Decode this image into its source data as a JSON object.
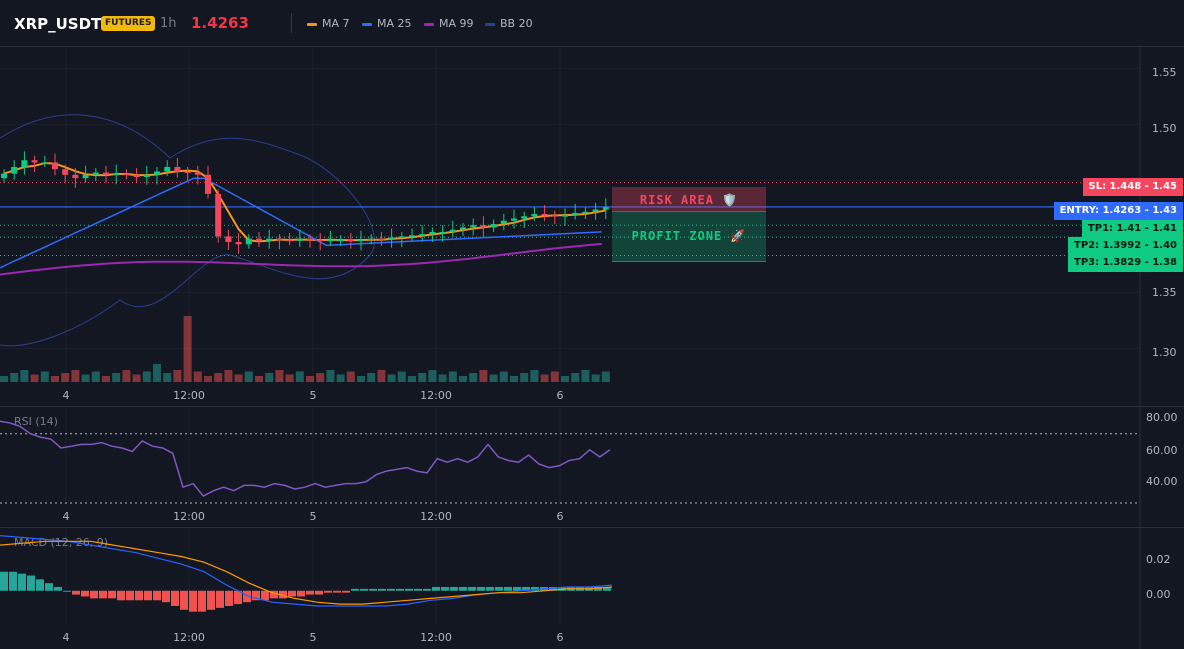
{
  "header": {
    "symbol": "XRP_USDT",
    "badge": "FUTURES",
    "timeframe": "1h",
    "price": "1.4263",
    "legend": [
      {
        "label": "MA 7",
        "color": "#f7931a"
      },
      {
        "label": "MA 25",
        "color": "#2f6bff"
      },
      {
        "label": "MA 99",
        "color": "#9c27b0"
      },
      {
        "label": "BB 20",
        "color": "#2a3f8f"
      }
    ]
  },
  "colors": {
    "up": "#26a69a",
    "down": "#ef5350",
    "bull_candle": "#0ecb81",
    "bear_candle": "#f6465d"
  },
  "price_axis": {
    "ticks": [
      "1.55",
      "1.50",
      "1.45",
      "1.40",
      "1.35",
      "1.30"
    ],
    "range": [
      1.27,
      1.57
    ]
  },
  "time_axis": [
    "4",
    "12:00",
    "5",
    "12:00",
    "6"
  ],
  "levels": {
    "sl": {
      "label": "SL: 1.448",
      "axis": "1.45",
      "value": 1.448
    },
    "entry": {
      "label": "ENTRY: 1.4263",
      "axis": "1.43",
      "value": 1.4263
    },
    "tp1": {
      "label": "TP1: 1.41",
      "axis": "1.41",
      "value": 1.41
    },
    "tp2": {
      "label": "TP2: 1.3992",
      "axis": "1.40",
      "value": 1.3992
    },
    "tp3": {
      "label": "TP3: 1.3829",
      "axis": "1.38",
      "value": 1.3829
    }
  },
  "zones": {
    "risk": "RISK AREA 🛡️",
    "profit": "PROFIT ZONE 🚀"
  },
  "rsi": {
    "title": "RSI (14)",
    "ticks": [
      "80.00",
      "60.00",
      "40.00"
    ],
    "range": [
      30,
      85
    ],
    "overbought": 70,
    "oversold": 30,
    "values": [
      77,
      76,
      74,
      70,
      68,
      67,
      62,
      63,
      64,
      64,
      65,
      63,
      62,
      60,
      66,
      63,
      62,
      59,
      40,
      42,
      35,
      38,
      40,
      38,
      41,
      41,
      40,
      42,
      41,
      39,
      40,
      42,
      40,
      41,
      42,
      42,
      43,
      47,
      49,
      50,
      51,
      49,
      48,
      56,
      54,
      56,
      54,
      57,
      64,
      57,
      55,
      54,
      58,
      53,
      51,
      52,
      55,
      56,
      61,
      57,
      61
    ]
  },
  "macd": {
    "title": "MACD (12, 26, 9)",
    "ticks": [
      "0.02",
      "0.00"
    ],
    "range": [
      -0.018,
      0.033
    ],
    "hist": [
      0.01,
      0.01,
      0.009,
      0.008,
      0.006,
      0.004,
      0.002,
      0.0,
      -0.002,
      -0.003,
      -0.004,
      -0.004,
      -0.004,
      -0.005,
      -0.005,
      -0.005,
      -0.005,
      -0.005,
      -0.006,
      -0.008,
      -0.01,
      -0.011,
      -0.011,
      -0.01,
      -0.009,
      -0.008,
      -0.007,
      -0.006,
      -0.005,
      -0.005,
      -0.004,
      -0.004,
      -0.003,
      -0.003,
      -0.002,
      -0.002,
      -0.001,
      -0.001,
      -0.001,
      0.001,
      0.001,
      0.001,
      0.001,
      0.001,
      0.001,
      0.001,
      0.001,
      0.001,
      0.002,
      0.002,
      0.002,
      0.002,
      0.002,
      0.002,
      0.002,
      0.002,
      0.002,
      0.002,
      0.002,
      0.002,
      0.002,
      0.002,
      0.002,
      0.002,
      0.002,
      0.002,
      0.002,
      0.002
    ],
    "macd": [
      0.029,
      0.028,
      0.027,
      0.026,
      0.024,
      0.022,
      0.02,
      0.017,
      0.014,
      0.01,
      0.003,
      -0.003,
      -0.006,
      -0.007,
      -0.008,
      -0.008,
      -0.008,
      -0.008,
      -0.007,
      -0.005,
      -0.004,
      -0.002,
      -0.001,
      0.0,
      0.001,
      0.002,
      0.002,
      0.003
    ],
    "signal": [
      0.024,
      0.025,
      0.026,
      0.026,
      0.026,
      0.024,
      0.022,
      0.02,
      0.018,
      0.015,
      0.01,
      0.004,
      -0.001,
      -0.004,
      -0.006,
      -0.007,
      -0.007,
      -0.006,
      -0.005,
      -0.004,
      -0.003,
      -0.002,
      -0.001,
      -0.001,
      0.0,
      0.001,
      0.001,
      0.002
    ]
  }
}
